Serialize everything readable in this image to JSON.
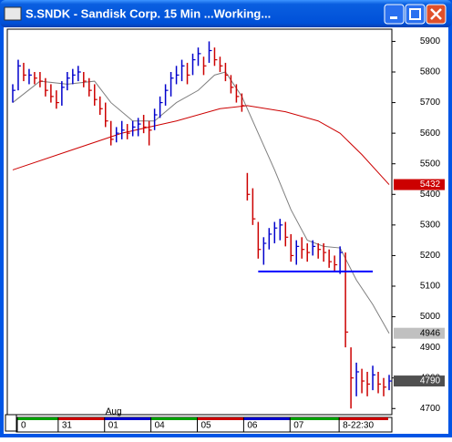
{
  "chart_data": {
    "type": "ohlc",
    "title": "S.SNDK - Sandisk Corp. 15 Min ...Working...",
    "high": [
      5760,
      5840,
      5830,
      5810,
      5800,
      5800,
      5780,
      5760,
      5740,
      5770,
      5800,
      5810,
      5820,
      5800,
      5780,
      5760,
      5720,
      5700,
      5640,
      5620,
      5640,
      5630,
      5640,
      5650,
      5660,
      5640,
      5680,
      5720,
      5760,
      5800,
      5820,
      5840,
      5830,
      5860,
      5880,
      5850,
      5900,
      5880,
      5850,
      5830,
      5790,
      5760,
      5730,
      5470,
      5420,
      5310,
      5260,
      5290,
      5310,
      5320,
      5310,
      5270,
      5250,
      5260,
      5240,
      5250,
      5240,
      5240,
      5220,
      5200,
      5230,
      5210,
      4900,
      4850,
      4830,
      4820,
      4840,
      4820,
      4800,
      4810
    ],
    "low": [
      5700,
      5740,
      5770,
      5760,
      5760,
      5750,
      5720,
      5700,
      5680,
      5690,
      5740,
      5760,
      5770,
      5750,
      5720,
      5690,
      5660,
      5620,
      5560,
      5570,
      5580,
      5580,
      5590,
      5590,
      5600,
      5560,
      5610,
      5650,
      5690,
      5720,
      5760,
      5770,
      5760,
      5790,
      5820,
      5790,
      5830,
      5820,
      5800,
      5770,
      5730,
      5700,
      5670,
      5380,
      5300,
      5190,
      5170,
      5220,
      5240,
      5250,
      5230,
      5180,
      5170,
      5190,
      5180,
      5200,
      5190,
      5180,
      5160,
      5150,
      5140,
      4900,
      4700,
      4740,
      4750,
      4740,
      4760,
      4750,
      4740,
      4760
    ],
    "close": [
      5740,
      5820,
      5790,
      5790,
      5780,
      5770,
      5740,
      5720,
      5700,
      5750,
      5780,
      5790,
      5800,
      5770,
      5740,
      5710,
      5680,
      5640,
      5580,
      5600,
      5610,
      5600,
      5620,
      5630,
      5620,
      5610,
      5660,
      5700,
      5740,
      5780,
      5790,
      5820,
      5790,
      5840,
      5860,
      5820,
      5870,
      5840,
      5820,
      5790,
      5750,
      5720,
      5690,
      5400,
      5320,
      5220,
      5240,
      5270,
      5290,
      5300,
      5260,
      5200,
      5230,
      5220,
      5210,
      5230,
      5220,
      5210,
      5180,
      5170,
      5210,
      4950,
      4800,
      4820,
      4790,
      4780,
      4810,
      4780,
      4770,
      4790
    ],
    "up_color": "#0000cc",
    "down_color": "#cc0000",
    "series": [
      {
        "color": "#7f7f7f",
        "x": [
          0,
          5,
          10,
          15,
          18,
          22,
          26,
          30,
          34,
          37,
          39,
          42,
          45,
          48,
          51,
          54,
          57,
          60,
          63,
          66,
          69
        ],
        "values": [
          5700,
          5770,
          5760,
          5770,
          5700,
          5640,
          5640,
          5700,
          5740,
          5790,
          5800,
          5720,
          5600,
          5480,
          5350,
          5250,
          5230,
          5225,
          5120,
          5040,
          4946
        ]
      },
      {
        "color": "#cc0000",
        "x": [
          0,
          10,
          20,
          30,
          38,
          43,
          50,
          56,
          60,
          64,
          69
        ],
        "values": [
          5480,
          5540,
          5600,
          5640,
          5680,
          5690,
          5670,
          5640,
          5600,
          5530,
          5432
        ]
      }
    ],
    "hline": {
      "value": 5148,
      "x": [
        45,
        66
      ],
      "color": "#0000ff"
    },
    "ylim": [
      4680,
      5940
    ],
    "yticks": [
      4700,
      4800,
      4900,
      5000,
      5100,
      5200,
      5300,
      5400,
      5500,
      5600,
      5700,
      5800,
      5900
    ],
    "xlim": [
      -1,
      69.5
    ],
    "xticks": [
      {
        "value": 1.5,
        "label": "0"
      },
      {
        "value": 9,
        "label": "31"
      },
      {
        "value": 17.5,
        "label": "01"
      },
      {
        "value": 26,
        "label": "04"
      },
      {
        "value": 34.5,
        "label": "05"
      },
      {
        "value": 43,
        "label": "06"
      },
      {
        "value": 51.5,
        "label": "07"
      },
      {
        "value": 60.5,
        "label": "8-22:30"
      }
    ],
    "month_label": {
      "value": 18,
      "label": "Aug"
    }
  }
}
